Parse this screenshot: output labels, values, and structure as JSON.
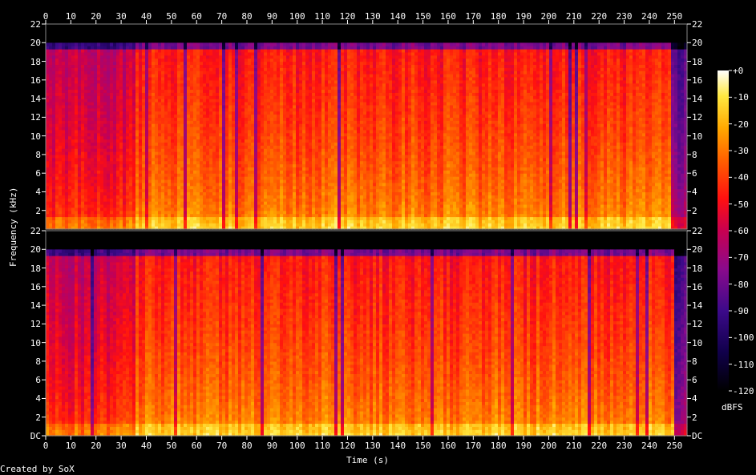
{
  "chart_data": {
    "type": "heatmap",
    "subtype": "spectrogram",
    "xlabel": "Time (s)",
    "ylabel": "Frequency (kHz)",
    "x_ticks": [
      0,
      10,
      20,
      30,
      40,
      50,
      60,
      70,
      80,
      90,
      100,
      110,
      120,
      130,
      140,
      150,
      160,
      170,
      180,
      190,
      200,
      210,
      220,
      230,
      240,
      250
    ],
    "xlim": [
      0,
      255
    ],
    "channels": [
      {
        "y_ticks_left": [
          "22",
          "20",
          "18",
          "16",
          "14",
          "12",
          "10",
          "8",
          "6",
          "4",
          "2"
        ],
        "y_ticks_right": [
          "22",
          "20",
          "18",
          "16",
          "14",
          "12",
          "10",
          "8",
          "6",
          "4",
          "2"
        ],
        "ylim_khz": [
          0,
          22
        ]
      },
      {
        "y_ticks_left": [
          "22",
          "20",
          "18",
          "16",
          "14",
          "12",
          "10",
          "8",
          "6",
          "4",
          "2",
          "DC"
        ],
        "y_ticks_right": [
          "22",
          "20",
          "18",
          "16",
          "14",
          "12",
          "10",
          "8",
          "6",
          "4",
          "2",
          "DC"
        ],
        "ylim_khz": [
          0,
          22
        ]
      }
    ],
    "lowpass_cutoff_khz": 20,
    "colorbar": {
      "label": "dBFS",
      "range_db": [
        -120,
        0
      ],
      "ticks": [
        "+0",
        "-10",
        "-20",
        "-30",
        "-40",
        "-50",
        "-60",
        "-70",
        "-80",
        "-90",
        "-100",
        "-110",
        "-120"
      ]
    },
    "quiet_intro_end_s": 36,
    "colors": {
      "background": "#000000",
      "text": "#ffffff",
      "frame": "#888888"
    }
  },
  "footer": {
    "credit": "Created by SoX"
  }
}
